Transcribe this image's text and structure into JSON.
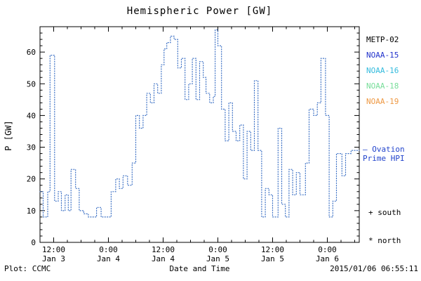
{
  "title": "Hemispheric Power [GW]",
  "ylabel": "P [GW]",
  "footer": {
    "left": "Plot: CCMC",
    "xlabel": "Date and Time",
    "right": "2015/01/06 06:55:11"
  },
  "legend": {
    "satellites": [
      {
        "label": "METP-02",
        "color": "#000000"
      },
      {
        "label": "NOAA-15",
        "color": "#2233cc"
      },
      {
        "label": "NOAA-16",
        "color": "#33bbdd"
      },
      {
        "label": "NOAA-18",
        "color": "#77dd99"
      },
      {
        "label": "NOAA-19",
        "color": "#ee9944"
      }
    ],
    "ovation_line1": "— Ovation",
    "ovation_line2": "Prime HPI",
    "ovation_color": "#2244cc",
    "south_marker": "+ south",
    "north_marker": "* north"
  },
  "chart_data": {
    "type": "line",
    "title": "Hemispheric Power [GW]",
    "xlabel": "Date and Time",
    "ylabel": "P [GW]",
    "ylim": [
      0,
      68
    ],
    "x_hours_range": [
      0,
      70
    ],
    "grid": false,
    "line_color": "#3a6fc4",
    "line_style": "dotted-step",
    "y_ticks": [
      0,
      10,
      20,
      30,
      40,
      50,
      60
    ],
    "y_minor_step": 2,
    "x_minor_step_hours": 3,
    "x_ticks": [
      {
        "t": 3,
        "time": "12:00",
        "date": "Jan 3"
      },
      {
        "t": 15,
        "time": "0:00",
        "date": "Jan 4"
      },
      {
        "t": 27,
        "time": "12:00",
        "date": "Jan 4"
      },
      {
        "t": 39,
        "time": "0:00",
        "date": "Jan 5"
      },
      {
        "t": 51,
        "time": "12:00",
        "date": "Jan 5"
      },
      {
        "t": 63,
        "time": "0:00",
        "date": "Jan 6"
      }
    ],
    "series": [
      {
        "name": "Ovation Prime HPI",
        "points": [
          [
            0,
            16
          ],
          [
            0.7,
            8
          ],
          [
            1.7,
            16
          ],
          [
            2.2,
            59
          ],
          [
            3.2,
            13
          ],
          [
            4,
            16
          ],
          [
            4.7,
            10
          ],
          [
            5.5,
            15
          ],
          [
            6.2,
            10
          ],
          [
            6.8,
            23
          ],
          [
            7.8,
            17
          ],
          [
            8.6,
            10
          ],
          [
            9.6,
            9
          ],
          [
            10.6,
            8
          ],
          [
            12.4,
            11
          ],
          [
            13.4,
            8
          ],
          [
            15.6,
            16
          ],
          [
            16.6,
            20
          ],
          [
            17.4,
            17
          ],
          [
            18.2,
            21
          ],
          [
            19.2,
            18
          ],
          [
            20.2,
            25
          ],
          [
            21,
            40
          ],
          [
            21.8,
            36
          ],
          [
            22.6,
            40
          ],
          [
            23.4,
            47
          ],
          [
            24.2,
            44
          ],
          [
            25,
            50
          ],
          [
            25.8,
            47
          ],
          [
            26.6,
            56
          ],
          [
            27.2,
            61
          ],
          [
            27.8,
            63
          ],
          [
            28.6,
            65
          ],
          [
            29.4,
            64
          ],
          [
            30.2,
            55
          ],
          [
            31,
            58
          ],
          [
            31.8,
            45
          ],
          [
            32.6,
            50
          ],
          [
            33.4,
            58
          ],
          [
            34.2,
            45
          ],
          [
            35,
            57
          ],
          [
            35.8,
            52
          ],
          [
            36.4,
            47
          ],
          [
            37.2,
            44
          ],
          [
            38,
            46
          ],
          [
            38.4,
            67
          ],
          [
            39,
            62
          ],
          [
            39.8,
            42
          ],
          [
            40.6,
            32
          ],
          [
            41.4,
            44
          ],
          [
            42.2,
            35
          ],
          [
            43,
            32
          ],
          [
            43.8,
            37
          ],
          [
            44.6,
            20
          ],
          [
            45.4,
            35
          ],
          [
            46.2,
            29
          ],
          [
            47,
            51
          ],
          [
            47.8,
            29
          ],
          [
            48.6,
            8
          ],
          [
            49.4,
            17
          ],
          [
            50.2,
            15
          ],
          [
            51,
            8
          ],
          [
            52.2,
            36
          ],
          [
            53,
            12
          ],
          [
            53.8,
            8
          ],
          [
            54.6,
            23
          ],
          [
            55.4,
            15
          ],
          [
            56.2,
            22
          ],
          [
            57,
            15
          ],
          [
            58.2,
            25
          ],
          [
            59,
            42
          ],
          [
            60,
            40
          ],
          [
            60.8,
            44
          ],
          [
            61.6,
            58
          ],
          [
            62.6,
            40
          ],
          [
            63.4,
            8
          ],
          [
            64.2,
            13
          ],
          [
            65,
            28
          ],
          [
            66.2,
            21
          ],
          [
            67,
            28
          ],
          [
            68.2,
            29
          ],
          [
            70,
            29
          ]
        ]
      }
    ]
  }
}
